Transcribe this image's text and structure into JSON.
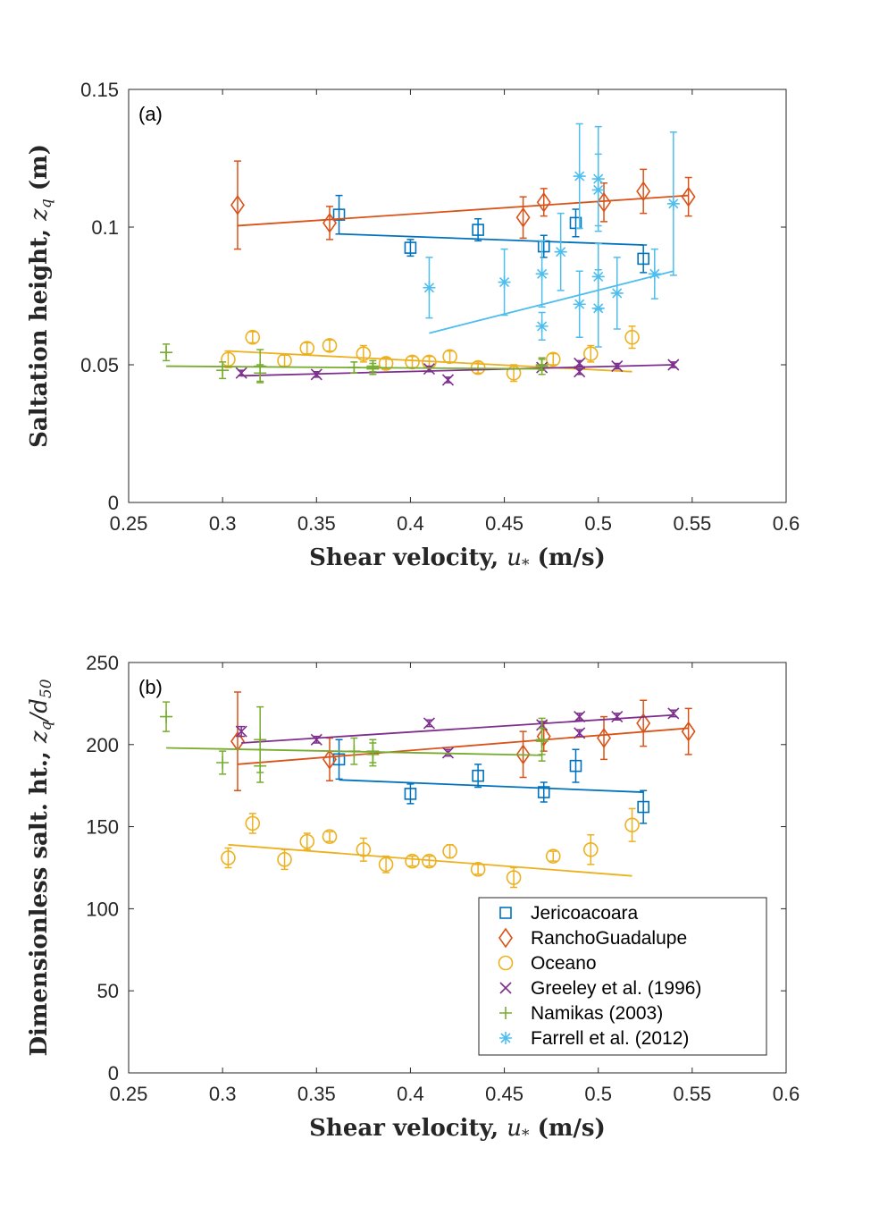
{
  "series_style": [
    {
      "name": "Jericoacoara",
      "color": "#0072BD",
      "marker": "square"
    },
    {
      "name": "RanchoGuadalupe",
      "color": "#D95319",
      "marker": "diamond"
    },
    {
      "name": "Oceano",
      "color": "#EDB120",
      "marker": "circle"
    },
    {
      "name": "Greeley et al. (1996)",
      "color": "#7E2F8E",
      "marker": "x"
    },
    {
      "name": "Namikas (2003)",
      "color": "#77AC30",
      "marker": "plus"
    },
    {
      "name": "Farrell et al. (2012)",
      "color": "#4DBEEE",
      "marker": "star"
    }
  ],
  "chart_data": [
    {
      "type": "scatter",
      "panel_label": "(a)",
      "xlabel_text": "Shear velocity, ",
      "xlabel_var": "u",
      "xlabel_sub": "*",
      "xlabel_unit": " (m/s)",
      "ylabel_text": "Saltation height, ",
      "ylabel_var": "z",
      "ylabel_sub": "q",
      "ylabel_unit": " (m)",
      "xlim": [
        0.25,
        0.6
      ],
      "ylim": [
        0,
        0.15
      ],
      "xticks": [
        0.25,
        0.3,
        0.35,
        0.4,
        0.45,
        0.5,
        0.55,
        0.6
      ],
      "xtick_labels": [
        "0.25",
        "0.3",
        "0.35",
        "0.4",
        "0.45",
        "0.5",
        "0.55",
        "0.6"
      ],
      "yticks": [
        0,
        0.05,
        0.1,
        0.15
      ],
      "ytick_labels": [
        "0",
        "0.05",
        "0.1",
        "0.15"
      ],
      "legend": null,
      "series": [
        {
          "name": "Jericoacoara",
          "points": [
            [
              0.362,
              0.1045,
              0.007
            ],
            [
              0.4,
              0.0925,
              0.003
            ],
            [
              0.436,
              0.099,
              0.004
            ],
            [
              0.471,
              0.093,
              0.004
            ],
            [
              0.488,
              0.1015,
              0.005
            ],
            [
              0.524,
              0.0885,
              0.005
            ]
          ],
          "fit": [
            [
              0.362,
              0.0975
            ],
            [
              0.524,
              0.0935
            ]
          ]
        },
        {
          "name": "RanchoGuadalupe",
          "points": [
            [
              0.308,
              0.108,
              0.016
            ],
            [
              0.357,
              0.1015,
              0.006
            ],
            [
              0.46,
              0.1035,
              0.0075
            ],
            [
              0.471,
              0.109,
              0.005
            ],
            [
              0.503,
              0.109,
              0.007
            ],
            [
              0.524,
              0.113,
              0.008
            ],
            [
              0.548,
              0.111,
              0.007
            ]
          ],
          "fit": [
            [
              0.308,
              0.1005
            ],
            [
              0.548,
              0.1115
            ]
          ]
        },
        {
          "name": "Oceano",
          "points": [
            [
              0.303,
              0.052,
              0.003
            ],
            [
              0.316,
              0.06,
              0.002
            ],
            [
              0.333,
              0.0515,
              0.002
            ],
            [
              0.345,
              0.056,
              0.002
            ],
            [
              0.357,
              0.057,
              0.002
            ],
            [
              0.375,
              0.054,
              0.003
            ],
            [
              0.387,
              0.0505,
              0.002
            ],
            [
              0.401,
              0.051,
              0.002
            ],
            [
              0.41,
              0.051,
              0.002
            ],
            [
              0.421,
              0.053,
              0.002
            ],
            [
              0.436,
              0.049,
              0.002
            ],
            [
              0.455,
              0.047,
              0.003
            ],
            [
              0.476,
              0.052,
              0.002
            ],
            [
              0.496,
              0.054,
              0.003
            ],
            [
              0.518,
              0.06,
              0.004
            ]
          ],
          "fit": [
            [
              0.303,
              0.055
            ],
            [
              0.518,
              0.0475
            ]
          ]
        },
        {
          "name": "Greeley et al. (1996)",
          "points": [
            [
              0.31,
              0.047,
              0.001
            ],
            [
              0.35,
              0.0465,
              0.001
            ],
            [
              0.41,
              0.0485,
              0.001
            ],
            [
              0.42,
              0.0445,
              0.001
            ],
            [
              0.47,
              0.049,
              0.001
            ],
            [
              0.49,
              0.0505,
              0.001
            ],
            [
              0.49,
              0.0475,
              0.001
            ],
            [
              0.51,
              0.0495,
              0.001
            ],
            [
              0.54,
              0.05,
              0.001
            ]
          ],
          "fit": [
            [
              0.31,
              0.046
            ],
            [
              0.54,
              0.05
            ]
          ]
        },
        {
          "name": "Namikas (2003)",
          "points": [
            [
              0.27,
              0.0545,
              0.003
            ],
            [
              0.3,
              0.048,
              0.003
            ],
            [
              0.32,
              0.0495,
              0.006
            ],
            [
              0.32,
              0.047,
              0.003
            ],
            [
              0.37,
              0.049,
              0.002
            ],
            [
              0.38,
              0.0495,
              0.002
            ],
            [
              0.38,
              0.0485,
              0.002
            ],
            [
              0.47,
              0.05,
              0.002
            ],
            [
              0.47,
              0.0495,
              0.003
            ]
          ],
          "fit": [
            [
              0.27,
              0.0495
            ],
            [
              0.47,
              0.0485
            ]
          ]
        },
        {
          "name": "Farrell et al. (2012)",
          "points": [
            [
              0.41,
              0.078,
              0.011
            ],
            [
              0.45,
              0.08,
              0.012
            ],
            [
              0.47,
              0.083,
              0.012
            ],
            [
              0.47,
              0.064,
              0.005
            ],
            [
              0.48,
              0.091,
              0.014
            ],
            [
              0.49,
              0.1185,
              0.019
            ],
            [
              0.49,
              0.072,
              0.012
            ],
            [
              0.5,
              0.1175,
              0.019
            ],
            [
              0.5,
              0.1135,
              0.013
            ],
            [
              0.5,
              0.082,
              0.012
            ],
            [
              0.5,
              0.0705,
              0.014
            ],
            [
              0.51,
              0.076,
              0.013
            ],
            [
              0.53,
              0.083,
              0.009
            ],
            [
              0.54,
              0.1085,
              0.026
            ]
          ],
          "fit": [
            [
              0.41,
              0.0615
            ],
            [
              0.54,
              0.084
            ]
          ]
        }
      ]
    },
    {
      "type": "scatter",
      "panel_label": "(b)",
      "xlabel_text": "Shear velocity, ",
      "xlabel_var": "u",
      "xlabel_sub": "*",
      "xlabel_unit": " (m/s)",
      "ylabel_text": "Dimensionless salt. ht., ",
      "ylabel_var": "z",
      "ylabel_sub": "q",
      "ylabel_slash": "/",
      "ylabel_var2": "d",
      "ylabel_sub2": "50",
      "xlim": [
        0.25,
        0.6
      ],
      "ylim": [
        0,
        250
      ],
      "xticks": [
        0.25,
        0.3,
        0.35,
        0.4,
        0.45,
        0.5,
        0.55,
        0.6
      ],
      "xtick_labels": [
        "0.25",
        "0.3",
        "0.35",
        "0.4",
        "0.45",
        "0.5",
        "0.55",
        "0.6"
      ],
      "yticks": [
        0,
        50,
        100,
        150,
        200,
        250
      ],
      "ytick_labels": [
        "0",
        "50",
        "100",
        "150",
        "200",
        "250"
      ],
      "legend": {
        "placement": "bottom-right",
        "entries": [
          "Jericoacoara",
          "RanchoGuadalupe",
          "Oceano",
          "Greeley et al. (1996)",
          "Namikas (2003)",
          "Farrell et al. (2012)"
        ]
      },
      "series": [
        {
          "name": "Jericoacoara",
          "points": [
            [
              0.362,
              191,
              12
            ],
            [
              0.4,
              170,
              6
            ],
            [
              0.436,
              181,
              7
            ],
            [
              0.471,
              171,
              6
            ],
            [
              0.488,
              187,
              10
            ],
            [
              0.524,
              162,
              10
            ]
          ],
          "fit": [
            [
              0.362,
              178.5
            ],
            [
              0.524,
              171
            ]
          ]
        },
        {
          "name": "RanchoGuadalupe",
          "points": [
            [
              0.308,
              202,
              30
            ],
            [
              0.357,
              191,
              13
            ],
            [
              0.46,
              194,
              14
            ],
            [
              0.471,
              205,
              9
            ],
            [
              0.503,
              204,
              13
            ],
            [
              0.524,
              213,
              14
            ],
            [
              0.548,
              208,
              14
            ]
          ],
          "fit": [
            [
              0.308,
              188
            ],
            [
              0.548,
              210
            ]
          ]
        },
        {
          "name": "Oceano",
          "points": [
            [
              0.303,
              131,
              6
            ],
            [
              0.316,
              152,
              6
            ],
            [
              0.333,
              130,
              6
            ],
            [
              0.345,
              141,
              5
            ],
            [
              0.357,
              144,
              3
            ],
            [
              0.375,
              136,
              7
            ],
            [
              0.387,
              127,
              5
            ],
            [
              0.401,
              129,
              3
            ],
            [
              0.41,
              129,
              3
            ],
            [
              0.421,
              135,
              4
            ],
            [
              0.436,
              124,
              3
            ],
            [
              0.455,
              119,
              6
            ],
            [
              0.476,
              132,
              3
            ],
            [
              0.496,
              136,
              9
            ],
            [
              0.518,
              151,
              10
            ]
          ],
          "fit": [
            [
              0.303,
              139
            ],
            [
              0.518,
              120
            ]
          ]
        },
        {
          "name": "Greeley et al. (1996)",
          "points": [
            [
              0.31,
              208,
              3
            ],
            [
              0.35,
              203,
              2
            ],
            [
              0.41,
              213,
              2
            ],
            [
              0.42,
              195,
              2
            ],
            [
              0.47,
              212,
              2
            ],
            [
              0.49,
              217,
              2
            ],
            [
              0.49,
              207,
              2
            ],
            [
              0.51,
              217,
              2
            ],
            [
              0.54,
              219,
              2
            ]
          ],
          "fit": [
            [
              0.31,
              201
            ],
            [
              0.54,
              218
            ]
          ]
        },
        {
          "name": "Namikas (2003)",
          "points": [
            [
              0.27,
              217,
              9
            ],
            [
              0.3,
              189,
              7
            ],
            [
              0.32,
              203,
              20
            ],
            [
              0.32,
              187,
              10
            ],
            [
              0.37,
              196,
              8
            ],
            [
              0.38,
              196,
              7
            ],
            [
              0.38,
              194,
              7
            ],
            [
              0.47,
              203,
              13
            ],
            [
              0.47,
              202,
              8
            ]
          ],
          "fit": [
            [
              0.27,
              198
            ],
            [
              0.47,
              193.5
            ]
          ]
        }
      ]
    }
  ]
}
